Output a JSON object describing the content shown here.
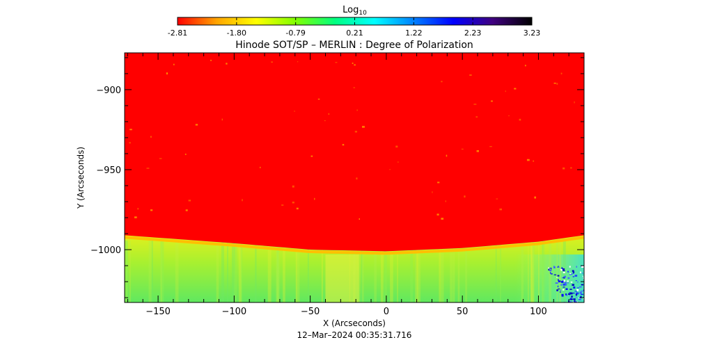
{
  "colorbar": {
    "label_main": "Log",
    "label_sub": "10",
    "ticks": [
      "-2.81",
      "-1.80",
      "-0.79",
      "0.21",
      "1.22",
      "2.23",
      "3.23"
    ],
    "range": [
      -2.81,
      3.23
    ],
    "colors": [
      "#ff0000",
      "#ffa500",
      "#ffff00",
      "#80ff00",
      "#00ff80",
      "#00ffff",
      "#0080ff",
      "#0000ff",
      "#400080",
      "#000000"
    ]
  },
  "chart_data": {
    "type": "heatmap",
    "title": "Hinode SOT/SP – MERLIN : Degree of Polarization",
    "xlabel": "X (Arcseconds)",
    "ylabel": "Y (Arcseconds)",
    "xlim": [
      -172,
      130
    ],
    "ylim": [
      -1033,
      -877
    ],
    "xticks": [
      -150,
      -100,
      -50,
      0,
      50,
      100
    ],
    "yticks": [
      -900,
      -950,
      -1000
    ],
    "limb_curve": {
      "description_free": true,
      "points": [
        [
          -172,
          -991
        ],
        [
          -100,
          -996
        ],
        [
          -50,
          -1000
        ],
        [
          0,
          -1001
        ],
        [
          50,
          -999
        ],
        [
          100,
          -995
        ],
        [
          130,
          -991
        ]
      ]
    },
    "disk_value": -2.81,
    "off_limb_value": -0.3,
    "date": "12–Mar–2024 00:35:31.716"
  }
}
